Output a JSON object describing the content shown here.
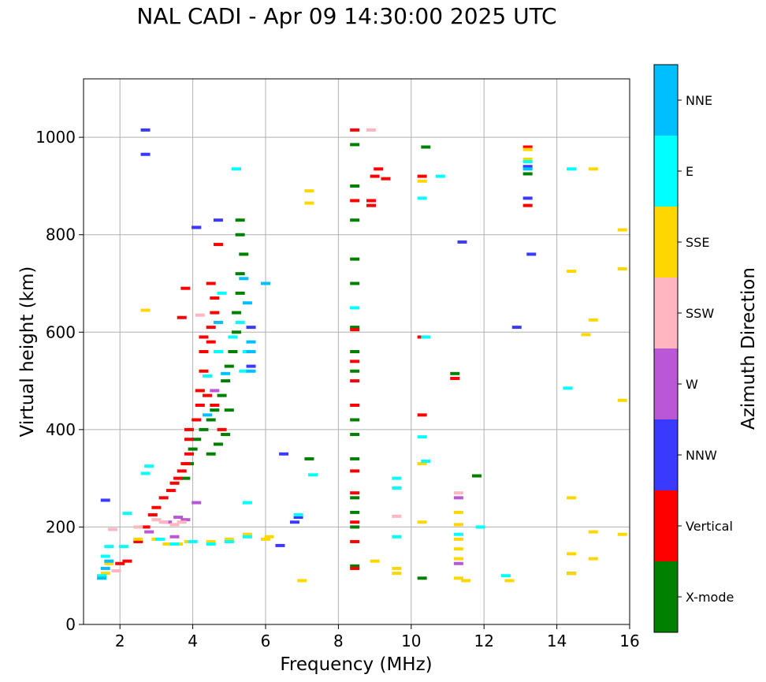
{
  "chart_data": {
    "type": "scatter",
    "title": "NAL CADI - Apr 09 14:30:00 2025 UTC",
    "xlabel": "Frequency (MHz)",
    "ylabel": "Virtual height (km)",
    "xlim": [
      1,
      16
    ],
    "ylim": [
      0,
      1120
    ],
    "xticks": [
      2,
      4,
      6,
      8,
      10,
      12,
      14,
      16
    ],
    "yticks": [
      0,
      200,
      400,
      600,
      800,
      1000
    ],
    "grid": true,
    "colorbar": {
      "label": "Azimuth Direction",
      "categories": [
        "X-mode",
        "Vertical",
        "NNW",
        "W",
        "SSW",
        "SSE",
        "E",
        "NNE"
      ],
      "colors": [
        "#008000",
        "#ff0000",
        "#3a3aff",
        "#b957d6",
        "#ffb6c1",
        "#ffd700",
        "#00ffff",
        "#00bfff"
      ]
    },
    "series": [
      {
        "name": "X-mode",
        "points": [
          [
            3.8,
            300
          ],
          [
            3.9,
            330
          ],
          [
            4.0,
            360
          ],
          [
            4.1,
            380
          ],
          [
            4.3,
            400
          ],
          [
            4.5,
            420
          ],
          [
            4.6,
            440
          ],
          [
            4.8,
            470
          ],
          [
            4.9,
            500
          ],
          [
            5.0,
            530
          ],
          [
            5.1,
            560
          ],
          [
            5.2,
            600
          ],
          [
            5.2,
            640
          ],
          [
            5.3,
            680
          ],
          [
            5.3,
            720
          ],
          [
            5.4,
            760
          ],
          [
            5.3,
            800
          ],
          [
            5.3,
            830
          ],
          [
            5.0,
            440
          ],
          [
            4.9,
            390
          ],
          [
            4.7,
            370
          ],
          [
            4.5,
            350
          ],
          [
            8.45,
            120
          ],
          [
            8.45,
            200
          ],
          [
            8.45,
            230
          ],
          [
            8.45,
            260
          ],
          [
            8.45,
            340
          ],
          [
            8.45,
            390
          ],
          [
            8.45,
            420
          ],
          [
            8.45,
            520
          ],
          [
            8.45,
            560
          ],
          [
            8.45,
            610
          ],
          [
            8.45,
            700
          ],
          [
            8.45,
            750
          ],
          [
            8.45,
            830
          ],
          [
            8.45,
            900
          ],
          [
            8.45,
            985
          ],
          [
            10.3,
            95
          ],
          [
            10.4,
            980
          ],
          [
            11.8,
            305
          ],
          [
            11.2,
            515
          ],
          [
            7.2,
            340
          ],
          [
            13.2,
            925
          ],
          [
            14.4,
            105
          ]
        ]
      },
      {
        "name": "Vertical",
        "points": [
          [
            2.0,
            125
          ],
          [
            2.2,
            130
          ],
          [
            2.5,
            170
          ],
          [
            2.7,
            200
          ],
          [
            2.9,
            225
          ],
          [
            3.0,
            240
          ],
          [
            3.2,
            260
          ],
          [
            3.4,
            275
          ],
          [
            3.5,
            290
          ],
          [
            3.6,
            300
          ],
          [
            3.7,
            315
          ],
          [
            3.8,
            330
          ],
          [
            3.9,
            350
          ],
          [
            3.9,
            380
          ],
          [
            3.9,
            400
          ],
          [
            4.1,
            420
          ],
          [
            4.2,
            450
          ],
          [
            4.2,
            480
          ],
          [
            4.3,
            520
          ],
          [
            4.3,
            560
          ],
          [
            4.3,
            590
          ],
          [
            4.5,
            610
          ],
          [
            4.6,
            640
          ],
          [
            4.6,
            670
          ],
          [
            4.5,
            700
          ],
          [
            4.7,
            780
          ],
          [
            4.1,
            815
          ],
          [
            3.8,
            690
          ],
          [
            3.7,
            630
          ],
          [
            4.4,
            470
          ],
          [
            4.6,
            450
          ],
          [
            4.8,
            400
          ],
          [
            4.5,
            580
          ],
          [
            8.45,
            115
          ],
          [
            8.45,
            170
          ],
          [
            8.45,
            210
          ],
          [
            8.45,
            270
          ],
          [
            8.45,
            315
          ],
          [
            8.45,
            450
          ],
          [
            8.45,
            500
          ],
          [
            8.45,
            540
          ],
          [
            8.45,
            605
          ],
          [
            8.45,
            870
          ],
          [
            8.45,
            1015
          ],
          [
            8.9,
            860
          ],
          [
            8.9,
            870
          ],
          [
            9.0,
            920
          ],
          [
            9.1,
            935
          ],
          [
            9.3,
            915
          ],
          [
            10.3,
            430
          ],
          [
            10.3,
            590
          ],
          [
            10.3,
            920
          ],
          [
            11.2,
            505
          ],
          [
            13.2,
            860
          ],
          [
            13.2,
            980
          ]
        ]
      },
      {
        "name": "NNW",
        "points": [
          [
            1.6,
            255
          ],
          [
            2.7,
            965
          ],
          [
            2.7,
            1015
          ],
          [
            4.1,
            815
          ],
          [
            4.7,
            830
          ],
          [
            5.6,
            610
          ],
          [
            5.6,
            530
          ],
          [
            6.5,
            350
          ],
          [
            6.9,
            220
          ],
          [
            6.8,
            210
          ],
          [
            11.4,
            785
          ],
          [
            12.9,
            610
          ],
          [
            13.3,
            760
          ],
          [
            13.2,
            875
          ],
          [
            13.2,
            940
          ],
          [
            6.4,
            162
          ]
        ]
      },
      {
        "name": "W",
        "points": [
          [
            2.8,
            190
          ],
          [
            3.3,
            210
          ],
          [
            3.6,
            220
          ],
          [
            3.8,
            215
          ],
          [
            3.5,
            180
          ],
          [
            11.3,
            125
          ],
          [
            11.3,
            260
          ],
          [
            4.1,
            250
          ],
          [
            4.6,
            480
          ]
        ]
      },
      {
        "name": "SSW",
        "points": [
          [
            1.8,
            195
          ],
          [
            2.5,
            200
          ],
          [
            3.0,
            215
          ],
          [
            3.2,
            210
          ],
          [
            3.5,
            205
          ],
          [
            3.7,
            210
          ],
          [
            8.9,
            1015
          ],
          [
            9.6,
            222
          ],
          [
            11.3,
            270
          ],
          [
            4.2,
            635
          ],
          [
            1.9,
            110
          ]
        ]
      },
      {
        "name": "SSE",
        "points": [
          [
            1.6,
            105
          ],
          [
            1.7,
            125
          ],
          [
            2.5,
            175
          ],
          [
            3.0,
            175
          ],
          [
            3.3,
            165
          ],
          [
            3.6,
            165
          ],
          [
            3.9,
            170
          ],
          [
            4.5,
            170
          ],
          [
            5.0,
            175
          ],
          [
            5.5,
            185
          ],
          [
            6.0,
            175
          ],
          [
            6.1,
            180
          ],
          [
            2.7,
            645
          ],
          [
            7.0,
            90
          ],
          [
            7.2,
            865
          ],
          [
            7.2,
            890
          ],
          [
            9.0,
            130
          ],
          [
            9.6,
            105
          ],
          [
            9.6,
            115
          ],
          [
            10.3,
            210
          ],
          [
            10.3,
            330
          ],
          [
            10.3,
            910
          ],
          [
            11.3,
            95
          ],
          [
            11.3,
            135
          ],
          [
            11.3,
            155
          ],
          [
            11.3,
            175
          ],
          [
            11.3,
            205
          ],
          [
            11.3,
            230
          ],
          [
            11.5,
            90
          ],
          [
            12.7,
            90
          ],
          [
            14.4,
            105
          ],
          [
            14.4,
            145
          ],
          [
            14.4,
            260
          ],
          [
            14.4,
            725
          ],
          [
            14.8,
            595
          ],
          [
            15.0,
            135
          ],
          [
            15.0,
            190
          ],
          [
            15.0,
            625
          ],
          [
            15.0,
            935
          ],
          [
            15.8,
            185
          ],
          [
            15.8,
            460
          ],
          [
            15.8,
            730
          ],
          [
            15.8,
            810
          ],
          [
            13.2,
            955
          ],
          [
            13.2,
            975
          ]
        ]
      },
      {
        "name": "E",
        "points": [
          [
            1.5,
            100
          ],
          [
            1.6,
            140
          ],
          [
            1.7,
            160
          ],
          [
            2.1,
            160
          ],
          [
            2.7,
            310
          ],
          [
            2.8,
            325
          ],
          [
            3.1,
            175
          ],
          [
            3.5,
            165
          ],
          [
            4.0,
            170
          ],
          [
            4.5,
            165
          ],
          [
            5.0,
            170
          ],
          [
            5.5,
            180
          ],
          [
            5.5,
            250
          ],
          [
            4.4,
            510
          ],
          [
            4.7,
            560
          ],
          [
            5.1,
            590
          ],
          [
            5.3,
            620
          ],
          [
            5.5,
            560
          ],
          [
            5.4,
            520
          ],
          [
            4.8,
            680
          ],
          [
            6.9,
            225
          ],
          [
            9.6,
            180
          ],
          [
            9.6,
            280
          ],
          [
            9.6,
            300
          ],
          [
            10.3,
            385
          ],
          [
            10.3,
            875
          ],
          [
            10.4,
            335
          ],
          [
            10.4,
            590
          ],
          [
            10.8,
            920
          ],
          [
            11.3,
            185
          ],
          [
            11.9,
            200
          ],
          [
            12.6,
            100
          ],
          [
            13.2,
            950
          ],
          [
            14.3,
            485
          ],
          [
            14.4,
            935
          ],
          [
            5.2,
            935
          ],
          [
            8.45,
            650
          ],
          [
            7.3,
            307
          ],
          [
            2.2,
            228
          ]
        ]
      },
      {
        "name": "NNE",
        "points": [
          [
            1.5,
            95
          ],
          [
            1.6,
            115
          ],
          [
            1.7,
            130
          ],
          [
            5.6,
            560
          ],
          [
            5.6,
            520
          ],
          [
            5.6,
            580
          ],
          [
            5.5,
            660
          ],
          [
            5.4,
            710
          ],
          [
            6.0,
            700
          ],
          [
            4.4,
            430
          ],
          [
            4.7,
            620
          ],
          [
            4.9,
            515
          ],
          [
            13.2,
            935
          ]
        ]
      }
    ]
  }
}
